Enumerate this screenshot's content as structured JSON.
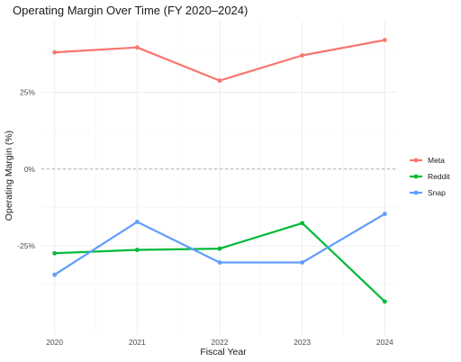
{
  "chart_data": {
    "type": "line",
    "title": "Operating Margin Over Time (FY 2020–2024)",
    "xlabel": "Fiscal Year",
    "ylabel": "Operating Margin (%)",
    "x": [
      2020,
      2021,
      2022,
      2023,
      2024
    ],
    "x_tick_labels": [
      "2020",
      "2021",
      "2022",
      "2023",
      "2024"
    ],
    "y_ticks": [
      -25,
      0,
      25
    ],
    "y_tick_labels": [
      "-25%",
      "0%",
      "25%"
    ],
    "ylim": [
      -54,
      48
    ],
    "grid": true,
    "reference_line": 0,
    "legend_position": "right",
    "series": [
      {
        "name": "Meta",
        "color": "#F8766D",
        "values": [
          38,
          39.6,
          28.8,
          37,
          42
        ]
      },
      {
        "name": "Reddit",
        "color": "#00BA38",
        "values": [
          -27.4,
          -26.3,
          -25.9,
          -17.6,
          -43.1
        ]
      },
      {
        "name": "Snap",
        "color": "#619CFF",
        "values": [
          -34.4,
          -17.2,
          -30.4,
          -30.4,
          -14.6
        ]
      }
    ]
  }
}
